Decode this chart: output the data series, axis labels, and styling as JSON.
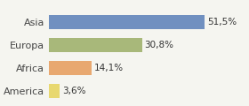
{
  "categories": [
    "Asia",
    "Europa",
    "Africa",
    "America"
  ],
  "values": [
    51.5,
    30.8,
    14.1,
    3.6
  ],
  "labels": [
    "51,5%",
    "30,8%",
    "14,1%",
    "3,6%"
  ],
  "bar_colors": [
    "#7090c0",
    "#a8b87a",
    "#e8a870",
    "#e8d870"
  ],
  "background_color": "#f5f5f0",
  "xlim": [
    0,
    65
  ],
  "figsize": [
    2.8,
    1.2
  ],
  "dpi": 100
}
